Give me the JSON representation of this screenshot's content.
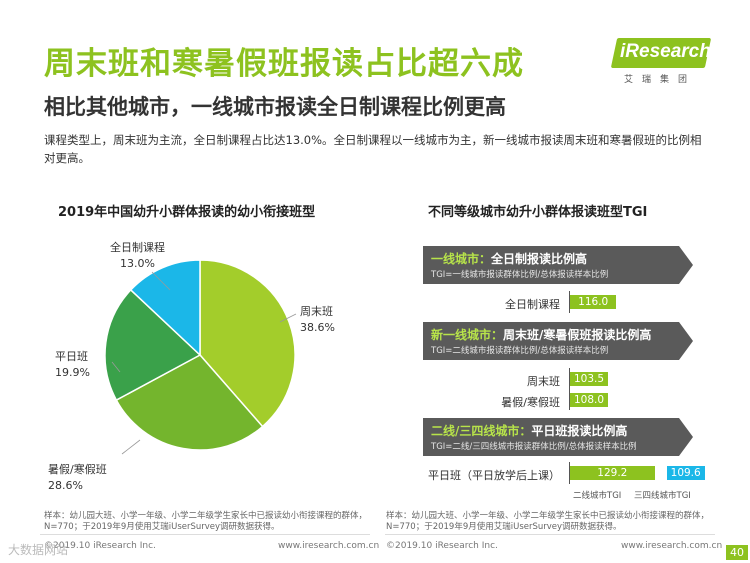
{
  "header": {
    "title": "周末班和寒暑假班报读占比超六成",
    "subtitle": "相比其他城市，一线城市报读全日制课程比例更高",
    "description": "课程类型上，周末班为主流，全日制课程占比达13.0%。全日制课程以一线城市为主，新一线城市报读周末班和寒暑假班的比例相对更高。"
  },
  "logo": {
    "text": "iResearch",
    "cn": "艾瑞集团",
    "brand_color": "#8dc21f"
  },
  "colors": {
    "green": "#8dc21f",
    "dark_green": "#3aa14a",
    "mid_green": "#74b52d",
    "cyan": "#1bb7e8",
    "header_bg": "#5a5a5a"
  },
  "chart_data": [
    {
      "type": "pie",
      "title": "2019年中国幼升小群体报读的幼小衔接班型",
      "series": [
        {
          "label": "周末班",
          "value": 38.6,
          "display": "38.6%",
          "color": "#a3cd2b"
        },
        {
          "label": "暑假/寒假班",
          "value": 28.6,
          "display": "28.6%",
          "color": "#74b52d"
        },
        {
          "label": "平日班",
          "value": 19.9,
          "display": "19.9%",
          "color": "#3aa14a"
        },
        {
          "label": "全日制课程",
          "value": 13.0,
          "display": "13.0%",
          "color": "#1bb7e8"
        }
      ]
    },
    {
      "type": "bar",
      "title": "不同等级城市幼升小群体报读班型TGI",
      "groups": [
        {
          "city": "一线城市：",
          "heading": "全日制报读比例高",
          "note": "TGI=一线城市报读群体比例/总体报读样本比例",
          "rows": [
            {
              "label": "全日制课程",
              "values": [
                116.0
              ],
              "display": [
                "116.0"
              ]
            }
          ]
        },
        {
          "city": "新一线城市：",
          "heading": "周末班/寒暑假班报读比例高",
          "note": "TGI=二线城市报读群体比例/总体报读样本比例",
          "rows": [
            {
              "label": "周末班",
              "values": [
                103.5
              ],
              "display": [
                "103.5"
              ]
            },
            {
              "label": "暑假/寒假班",
              "values": [
                108.0
              ],
              "display": [
                "108.0"
              ]
            }
          ]
        },
        {
          "city": "二线/三四线城市：",
          "heading": "平日班报读比例高",
          "note": "TGI=二线/三四线城市报读群体比例/总体报读样本比例",
          "rows": [
            {
              "label": "平日班（平日放学后上课）",
              "values": [
                129.2,
                109.6
              ],
              "display": [
                "129.2",
                "109.6"
              ]
            }
          ]
        }
      ],
      "series": [
        {
          "name": "二线城市TGI",
          "color": "#8dc21f"
        },
        {
          "name": "三四线城市TGI",
          "color": "#1bb7e8"
        }
      ],
      "baseline": 100
    }
  ],
  "notes": {
    "left": "样本：幼儿园大班、小学一年级、小学二年级学生家长中已报读幼小衔接课程的群体，N=770；于2019年9月使用艾瑞iUserSurvey调研数据获得。",
    "right": "样本：幼儿园大班、小学一年级、小学二年级学生家长中已报读幼小衔接课程的群体，N=770；于2019年9月使用艾瑞iUserSurvey调研数据获得。"
  },
  "footer": {
    "left_copyright": "©2019.10 iResearch Inc.",
    "left_url": "www.iresearch.com.cn",
    "right_copyright": "©2019.10 iResearch Inc.",
    "right_url": "www.iresearch.com.cn",
    "page": "40",
    "watermark": "大数据网站"
  }
}
